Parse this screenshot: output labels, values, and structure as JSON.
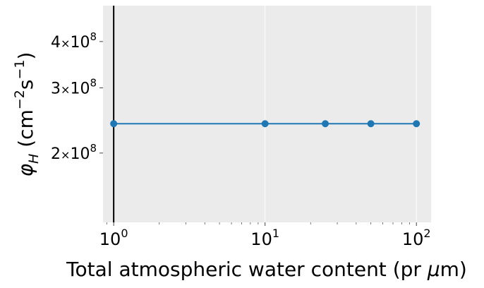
{
  "chart_data": {
    "type": "line",
    "xlabel": "Total atmospheric water content (pr μm)",
    "ylabel": "φ_H (cm⁻²s⁻¹)",
    "xscale": "log",
    "yscale": "log",
    "xlim": [
      0.85,
      125
    ],
    "ylim": [
      130000000,
      500000000
    ],
    "grid": true,
    "background": "#ebebeb",
    "series_color": "#1f77b4",
    "vline_x": 1,
    "vline_color": "#000000",
    "x_ticks": [
      {
        "value": 1,
        "base": "10",
        "exp": "0"
      },
      {
        "value": 10,
        "base": "10",
        "exp": "1"
      },
      {
        "value": 100,
        "base": "10",
        "exp": "2"
      }
    ],
    "y_ticks": [
      {
        "value": 200000000,
        "mant": "2",
        "base": "10",
        "exp": "8"
      },
      {
        "value": 300000000,
        "mant": "3",
        "base": "10",
        "exp": "8"
      },
      {
        "value": 400000000,
        "mant": "4",
        "base": "10",
        "exp": "8"
      }
    ],
    "series": [
      {
        "x": [
          1,
          10,
          25,
          50,
          100
        ],
        "y": [
          240000000,
          240000000,
          240000000,
          240000000,
          240000000
        ]
      }
    ]
  }
}
